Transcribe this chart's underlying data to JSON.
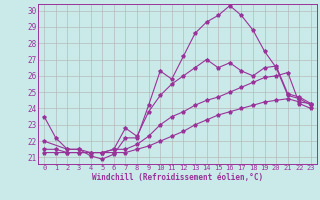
{
  "background_color": "#caeaea",
  "line_color": "#993399",
  "grid_color": "#b0b0b0",
  "xlabel": "Windchill (Refroidissement éolien,°C)",
  "xlim": [
    -0.5,
    23.5
  ],
  "ylim": [
    20.6,
    30.4
  ],
  "yticks": [
    21,
    22,
    23,
    24,
    25,
    26,
    27,
    28,
    29,
    30
  ],
  "xticks": [
    0,
    1,
    2,
    3,
    4,
    5,
    6,
    7,
    8,
    9,
    10,
    11,
    12,
    13,
    14,
    15,
    16,
    17,
    18,
    19,
    20,
    21,
    22,
    23
  ],
  "line1_x": [
    0,
    1,
    2,
    3,
    4,
    5,
    6,
    7,
    8,
    9,
    10,
    11,
    12,
    13,
    14,
    15,
    16,
    17,
    18,
    19,
    20,
    21,
    22,
    23
  ],
  "line1_y": [
    23.5,
    22.2,
    21.5,
    21.5,
    21.1,
    20.9,
    21.2,
    22.2,
    22.2,
    24.2,
    26.3,
    25.8,
    27.2,
    28.6,
    29.3,
    29.7,
    30.3,
    29.7,
    28.8,
    27.5,
    26.5,
    24.8,
    24.6,
    24.2
  ],
  "line2_x": [
    0,
    2,
    3,
    4,
    5,
    6,
    7,
    8,
    9,
    10,
    11,
    12,
    13,
    14,
    15,
    16,
    17,
    18,
    19,
    20,
    21,
    22,
    23
  ],
  "line2_y": [
    22.0,
    21.5,
    21.5,
    21.3,
    21.3,
    21.5,
    22.8,
    22.3,
    23.8,
    24.8,
    25.5,
    26.0,
    26.5,
    27.0,
    26.5,
    26.8,
    26.3,
    26.0,
    26.5,
    26.6,
    24.9,
    24.7,
    24.3
  ],
  "line3_x": [
    0,
    1,
    2,
    3,
    4,
    5,
    6,
    7,
    8,
    9,
    10,
    11,
    12,
    13,
    14,
    15,
    16,
    17,
    18,
    19,
    20,
    21,
    22,
    23
  ],
  "line3_y": [
    21.5,
    21.5,
    21.3,
    21.3,
    21.3,
    21.3,
    21.5,
    21.5,
    21.8,
    22.3,
    23.0,
    23.5,
    23.8,
    24.2,
    24.5,
    24.7,
    25.0,
    25.3,
    25.6,
    25.9,
    26.0,
    26.2,
    24.3,
    24.0
  ],
  "line4_x": [
    0,
    1,
    2,
    3,
    4,
    5,
    6,
    7,
    8,
    9,
    10,
    11,
    12,
    13,
    14,
    15,
    16,
    17,
    18,
    19,
    20,
    21,
    22,
    23
  ],
  "line4_y": [
    21.3,
    21.3,
    21.3,
    21.3,
    21.3,
    21.3,
    21.3,
    21.3,
    21.5,
    21.7,
    22.0,
    22.3,
    22.6,
    23.0,
    23.3,
    23.6,
    23.8,
    24.0,
    24.2,
    24.4,
    24.5,
    24.6,
    24.4,
    24.3
  ]
}
